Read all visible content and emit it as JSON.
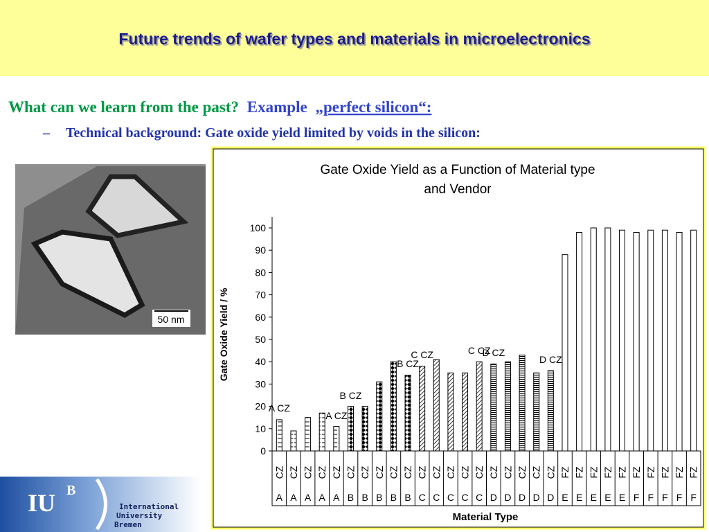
{
  "header": {
    "title": "Future trends of wafer types and materials in microelectronics"
  },
  "body": {
    "question": "What can we learn from the past?",
    "example_prefix": "Example",
    "example_link": "„perfect silicon“:",
    "bullet_marker": "–",
    "bullet": "Technical background: Gate oxide yield limited by voids in the silicon:"
  },
  "micrograph": {
    "scale_label": "50 nm"
  },
  "logo": {
    "mark": "IU",
    "superscript": "B",
    "lines": [
      "International",
      "University",
      "Bremen"
    ]
  },
  "chart_data": {
    "type": "bar",
    "title_lines": [
      "Gate Oxide Yield as a Function of Material type",
      "and Vendor"
    ],
    "y_label": "Gate Oxide Yield / %",
    "x_label": "Material Type",
    "categories": [
      {
        "material": "CZ",
        "vendor": "A"
      },
      {
        "material": "CZ",
        "vendor": "A"
      },
      {
        "material": "CZ",
        "vendor": "A"
      },
      {
        "material": "CZ",
        "vendor": "A"
      },
      {
        "material": "CZ",
        "vendor": "A"
      },
      {
        "material": "CZ",
        "vendor": "B"
      },
      {
        "material": "CZ",
        "vendor": "B"
      },
      {
        "material": "CZ",
        "vendor": "B"
      },
      {
        "material": "CZ",
        "vendor": "B"
      },
      {
        "material": "CZ",
        "vendor": "B"
      },
      {
        "material": "CZ",
        "vendor": "C"
      },
      {
        "material": "CZ",
        "vendor": "C"
      },
      {
        "material": "CZ",
        "vendor": "C"
      },
      {
        "material": "CZ",
        "vendor": "C"
      },
      {
        "material": "CZ",
        "vendor": "C"
      },
      {
        "material": "CZ",
        "vendor": "D"
      },
      {
        "material": "CZ",
        "vendor": "D"
      },
      {
        "material": "CZ",
        "vendor": "D"
      },
      {
        "material": "CZ",
        "vendor": "D"
      },
      {
        "material": "CZ",
        "vendor": "D"
      },
      {
        "material": "FZ",
        "vendor": "E"
      },
      {
        "material": "FZ",
        "vendor": "E"
      },
      {
        "material": "FZ",
        "vendor": "E"
      },
      {
        "material": "FZ",
        "vendor": "E"
      },
      {
        "material": "FZ",
        "vendor": "E"
      },
      {
        "material": "FZ",
        "vendor": "F"
      },
      {
        "material": "FZ",
        "vendor": "F"
      },
      {
        "material": "FZ",
        "vendor": "F"
      },
      {
        "material": "FZ",
        "vendor": "F"
      },
      {
        "material": "FZ",
        "vendor": "F"
      }
    ],
    "values": [
      14,
      9,
      15,
      17,
      11,
      20,
      20,
      31,
      40,
      34,
      38,
      41,
      35,
      35,
      40,
      39,
      40,
      43,
      35,
      36,
      88,
      98,
      100,
      100,
      99,
      98,
      99,
      99,
      98,
      99
    ],
    "vendor_fills": {
      "A": "boxes",
      "B": "dots",
      "C": "hatch",
      "D": "stripes",
      "E": "plain",
      "F": "plain"
    },
    "annotations": [
      "A CZ",
      "A CZ",
      "B CZ",
      "B CZ",
      "C CZ",
      "C CZ",
      "D CZ",
      "D CZ"
    ],
    "ylim": [
      0,
      100
    ],
    "yticks": [
      0,
      10,
      20,
      30,
      40,
      50,
      60,
      70,
      80,
      90,
      100
    ],
    "grid": false
  }
}
